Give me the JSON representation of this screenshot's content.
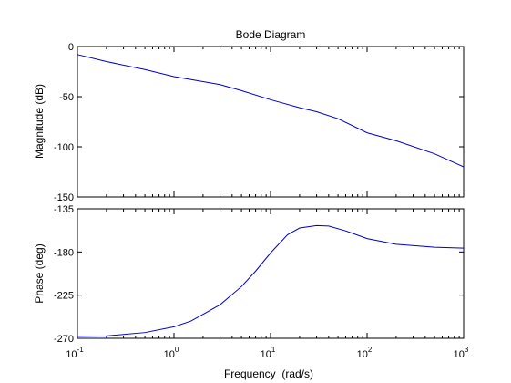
{
  "chart_data": [
    {
      "type": "line",
      "panel": "magnitude",
      "title": "Bode Diagram",
      "xlabel": "",
      "ylabel": "Magnitude (dB)",
      "xscale": "log",
      "xlim": [
        0.1,
        1000
      ],
      "ylim": [
        -150,
        0
      ],
      "yticks": [
        0,
        -50,
        -100,
        -150
      ],
      "grid": false,
      "legend": "none",
      "series": [
        {
          "color": "#0000c8",
          "x": [
            0.1,
            0.2,
            0.5,
            1,
            2,
            3,
            5,
            10,
            20,
            30,
            50,
            100,
            200,
            500,
            1000
          ],
          "y": [
            -8,
            -15,
            -23,
            -30,
            -35,
            -38,
            -44,
            -53,
            -61,
            -65,
            -72,
            -86,
            -94,
            -107,
            -120
          ]
        }
      ]
    },
    {
      "type": "line",
      "panel": "phase",
      "title": "",
      "xlabel": "Frequency  (rad/s)",
      "ylabel": "Phase (deg)",
      "xscale": "log",
      "xlim": [
        0.1,
        1000
      ],
      "ylim": [
        -270,
        -135
      ],
      "yticks": [
        -135,
        -180,
        -225,
        -270
      ],
      "xticks": [
        {
          "base": "10",
          "exp": "-1",
          "value": 0.1
        },
        {
          "base": "10",
          "exp": "0",
          "value": 1
        },
        {
          "base": "10",
          "exp": "1",
          "value": 10
        },
        {
          "base": "10",
          "exp": "2",
          "value": 100
        },
        {
          "base": "10",
          "exp": "3",
          "value": 1000
        }
      ],
      "grid": false,
      "legend": "none",
      "series": [
        {
          "color": "#0000c8",
          "x": [
            0.1,
            0.2,
            0.5,
            1,
            1.5,
            2,
            3,
            5,
            7,
            10,
            15,
            20,
            30,
            40,
            60,
            100,
            200,
            500,
            1000
          ],
          "y": [
            -268,
            -267.5,
            -264,
            -258,
            -252,
            -245,
            -235,
            -216,
            -200,
            -181,
            -162,
            -155,
            -152.5,
            -153,
            -158,
            -166,
            -172,
            -175,
            -176
          ]
        }
      ]
    }
  ]
}
